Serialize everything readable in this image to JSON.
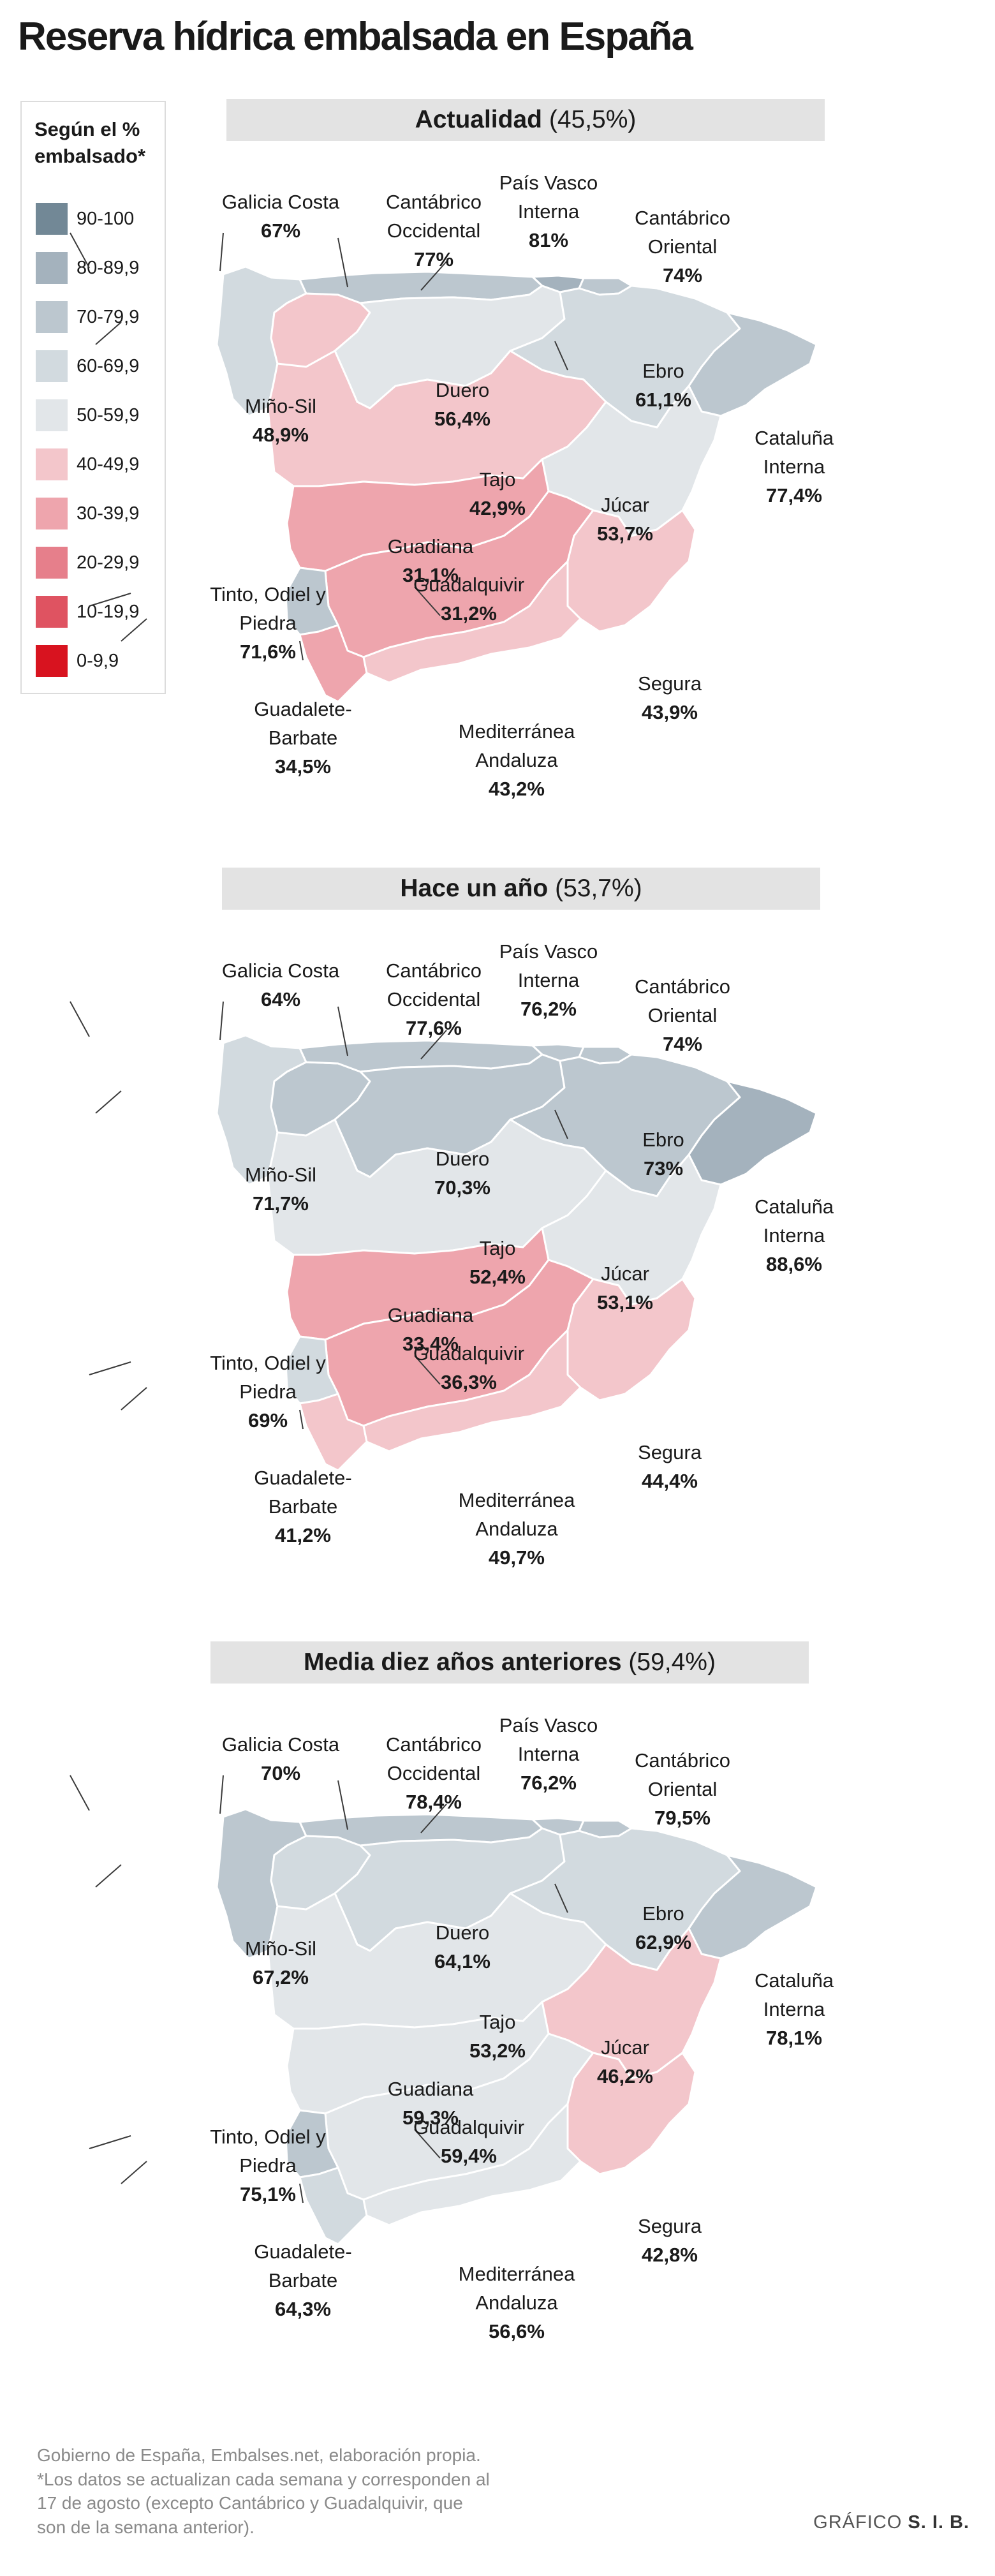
{
  "title": "Reserva hídrica embalsada en España",
  "legend": {
    "title": "Según el % embalsado*",
    "items": [
      {
        "label": "90-100",
        "color": "#728896"
      },
      {
        "label": "80-89,9",
        "color": "#a4b2bd"
      },
      {
        "label": "70-79,9",
        "color": "#bcc7cf"
      },
      {
        "label": "60-69,9",
        "color": "#d2dadf"
      },
      {
        "label": "50-59,9",
        "color": "#e2e6e9"
      },
      {
        "label": "40-49,9",
        "color": "#f3c6cb"
      },
      {
        "label": "30-39,9",
        "color": "#eea5ad"
      },
      {
        "label": "20-29,9",
        "color": "#e67f8b"
      },
      {
        "label": "10-19,9",
        "color": "#df5361"
      },
      {
        "label": "0-9,9",
        "color": "#d8131f"
      }
    ]
  },
  "panels": [
    {
      "title": "Actualidad",
      "subtitle": "(45,5%)",
      "regions": {
        "galicia": {
          "name": "Galicia Costa",
          "value": "67%"
        },
        "cantabrico_occ": {
          "name": "Cantábrico Occidental",
          "value": "77%"
        },
        "pais_vasco": {
          "name": "País Vasco Interna",
          "value": "81%"
        },
        "cantabrico_ori": {
          "name": "Cantábrico Oriental",
          "value": "74%"
        },
        "mino": {
          "name": "Miño-Sil",
          "value": "48,9%"
        },
        "duero": {
          "name": "Duero",
          "value": "56,4%"
        },
        "ebro": {
          "name": "Ebro",
          "value": "61,1%"
        },
        "cataluna": {
          "name": "Cataluña Interna",
          "value": "77,4%"
        },
        "tajo": {
          "name": "Tajo",
          "value": "42,9%"
        },
        "jucar": {
          "name": "Júcar",
          "value": "53,7%"
        },
        "guadiana": {
          "name": "Guadiana",
          "value": "31,1%"
        },
        "guadalquivir": {
          "name": "Guadalquivir",
          "value": "31,2%"
        },
        "tinto": {
          "name": "Tinto, Odiel y Piedra",
          "value": "71,6%"
        },
        "segura": {
          "name": "Segura",
          "value": "43,9%"
        },
        "guadalete": {
          "name": "Guadalete-Barbate",
          "value": "34,5%"
        },
        "mediterranea": {
          "name": "Mediterránea Andaluza",
          "value": "43,2%"
        }
      }
    },
    {
      "title": "Hace un año",
      "subtitle": "(53,7%)",
      "regions": {
        "galicia": {
          "name": "Galicia Costa",
          "value": "64%"
        },
        "cantabrico_occ": {
          "name": "Cantábrico Occidental",
          "value": "77,6%"
        },
        "pais_vasco": {
          "name": "País Vasco Interna",
          "value": "76,2%"
        },
        "cantabrico_ori": {
          "name": "Cantábrico Oriental",
          "value": "74%"
        },
        "mino": {
          "name": "Miño-Sil",
          "value": "71,7%"
        },
        "duero": {
          "name": "Duero",
          "value": "70,3%"
        },
        "ebro": {
          "name": "Ebro",
          "value": "73%"
        },
        "cataluna": {
          "name": "Cataluña Interna",
          "value": "88,6%"
        },
        "tajo": {
          "name": "Tajo",
          "value": "52,4%"
        },
        "jucar": {
          "name": "Júcar",
          "value": "53,1%"
        },
        "guadiana": {
          "name": "Guadiana",
          "value": "33,4%"
        },
        "guadalquivir": {
          "name": "Guadalquivir",
          "value": "36,3%"
        },
        "tinto": {
          "name": "Tinto, Odiel y Piedra",
          "value": "69%"
        },
        "segura": {
          "name": "Segura",
          "value": "44,4%"
        },
        "guadalete": {
          "name": "Guadalete-Barbate",
          "value": "41,2%"
        },
        "mediterranea": {
          "name": "Mediterránea Andaluza",
          "value": "49,7%"
        }
      }
    },
    {
      "title": "Media diez años anteriores",
      "subtitle": "(59,4%)",
      "regions": {
        "galicia": {
          "name": "Galicia Costa",
          "value": "70%"
        },
        "cantabrico_occ": {
          "name": "Cantábrico Occidental",
          "value": "78,4%"
        },
        "pais_vasco": {
          "name": "País Vasco Interna",
          "value": "76,2%"
        },
        "cantabrico_ori": {
          "name": "Cantábrico Oriental",
          "value": "79,5%"
        },
        "mino": {
          "name": "Miño-Sil",
          "value": "67,2%"
        },
        "duero": {
          "name": "Duero",
          "value": "64,1%"
        },
        "ebro": {
          "name": "Ebro",
          "value": "62,9%"
        },
        "cataluna": {
          "name": "Cataluña Interna",
          "value": "78,1%"
        },
        "tajo": {
          "name": "Tajo",
          "value": "53,2%"
        },
        "jucar": {
          "name": "Júcar",
          "value": "46,2%"
        },
        "guadiana": {
          "name": "Guadiana",
          "value": "59,3%"
        },
        "guadalquivir": {
          "name": "Guadalquivir",
          "value": "59,4%"
        },
        "tinto": {
          "name": "Tinto, Odiel y Piedra",
          "value": "75,1%"
        },
        "segura": {
          "name": "Segura",
          "value": "42,8%"
        },
        "guadalete": {
          "name": "Guadalete-Barbate",
          "value": "64,3%"
        },
        "mediterranea": {
          "name": "Mediterránea Andaluza",
          "value": "56,6%"
        }
      }
    }
  ],
  "source": "Gobierno de España, Embalses.net, elaboración propia. *Los datos se actualizan cada semana y corresponden al 17 de agosto (excepto Cantábrico y Guadalquivir, que son de la semana anterior).",
  "credit_prefix": "GRÁFICO",
  "credit_name": "S. I. B."
}
